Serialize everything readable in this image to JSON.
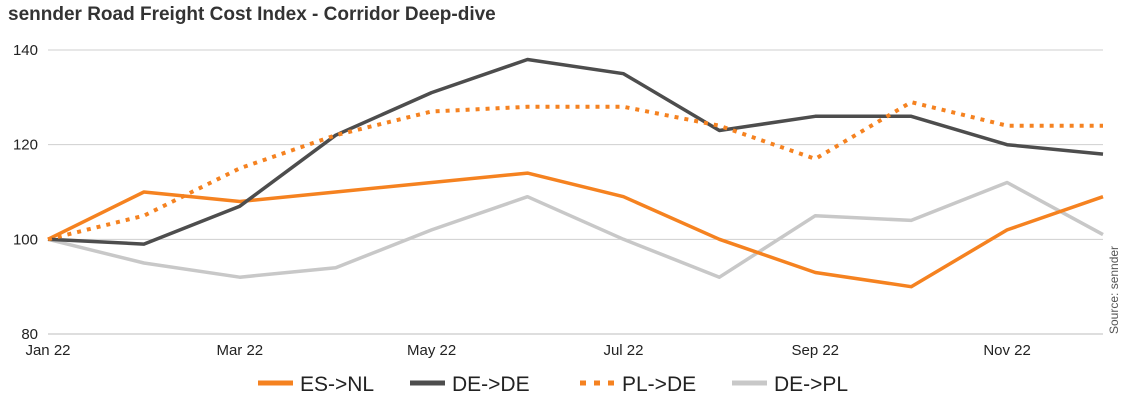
{
  "title": "sennder Road Freight Cost Index - Corridor Deep-dive",
  "source": "Source: sennder",
  "chart_data": {
    "type": "line",
    "title": "sennder Road Freight Cost Index - Corridor Deep-dive",
    "x": [
      "Jan 22",
      "Feb 22",
      "Mar 22",
      "Apr 22",
      "May 22",
      "Jun 22",
      "Jul 22",
      "Aug 22",
      "Sep 22",
      "Oct 22",
      "Nov 22",
      "Dec 22"
    ],
    "x_tick_labels": [
      "Jan 22",
      "Mar 22",
      "May 22",
      "Jul 22",
      "Sep 22",
      "Nov 22"
    ],
    "y_tick_labels": [
      "80",
      "100",
      "120",
      "140"
    ],
    "ylim": [
      80,
      140
    ],
    "grid": true,
    "legend_position": "bottom",
    "series": [
      {
        "name": "ES->NL",
        "color": "#f58220",
        "style": "solid",
        "values": [
          100,
          110,
          108,
          110,
          112,
          114,
          109,
          100,
          93,
          90,
          102,
          109
        ]
      },
      {
        "name": "DE->DE",
        "color": "#4d4d4d",
        "style": "solid",
        "values": [
          100,
          99,
          107,
          122,
          131,
          138,
          135,
          123,
          126,
          126,
          120,
          118
        ]
      },
      {
        "name": "PL->DE",
        "color": "#f58220",
        "style": "dotted",
        "values": [
          100,
          105,
          115,
          122,
          127,
          128,
          128,
          124,
          117,
          129,
          124,
          124
        ]
      },
      {
        "name": "DE->PL",
        "color": "#c8c8c8",
        "style": "solid",
        "values": [
          100,
          95,
          92,
          94,
          102,
          109,
          100,
          92,
          105,
          104,
          112,
          101
        ]
      }
    ]
  }
}
